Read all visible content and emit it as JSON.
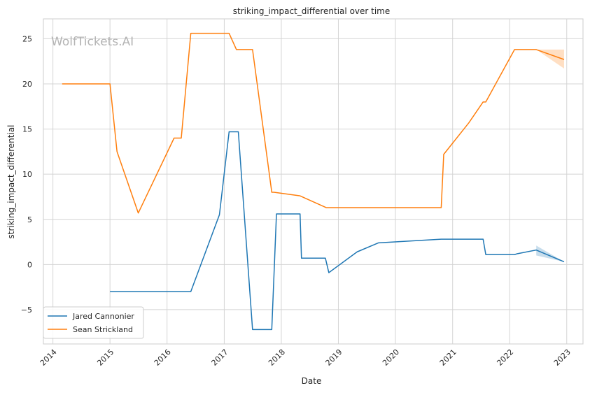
{
  "chart_data": {
    "type": "line",
    "title": "striking_impact_differential over time",
    "xlabel": "Date",
    "ylabel": "striking_impact_differential",
    "watermark": "WolfTickets.AI",
    "x_scale": "date",
    "xlim": [
      "2013-11-01",
      "2023-04-15"
    ],
    "ylim": [
      -8.8,
      27.2
    ],
    "x_ticks": [
      "2014",
      "2015",
      "2016",
      "2017",
      "2018",
      "2019",
      "2020",
      "2021",
      "2022",
      "2023"
    ],
    "y_ticks": [
      -5,
      0,
      5,
      10,
      15,
      20,
      25
    ],
    "grid": true,
    "legend_position": "lower-left",
    "series": [
      {
        "name": "Jared Cannonier",
        "color": "#1f77b4",
        "x": [
          "2015-01-01",
          "2016-06-01",
          "2016-12-01",
          "2017-02-01",
          "2017-04-01",
          "2017-07-01",
          "2017-11-01",
          "2017-12-01",
          "2018-05-01",
          "2018-05-10",
          "2018-10-10",
          "2018-11-01",
          "2019-05-01",
          "2019-09-15",
          "2020-10-20",
          "2021-07-15",
          "2021-08-01",
          "2022-02-01",
          "2022-02-20",
          "2022-06-20",
          "2022-12-15"
        ],
        "values": [
          -3.0,
          -3.0,
          5.5,
          14.7,
          14.7,
          -7.2,
          -7.2,
          5.6,
          5.6,
          0.7,
          0.7,
          -0.9,
          1.4,
          2.4,
          2.8,
          2.8,
          1.1,
          1.1,
          1.2,
          1.6,
          0.3
        ],
        "ci_x": [
          "2022-06-20",
          "2022-12-15"
        ],
        "ci_lower": [
          1.0,
          0.3
        ],
        "ci_upper": [
          2.1,
          0.3
        ]
      },
      {
        "name": "Sean Strickland",
        "color": "#ff7f0e",
        "x": [
          "2014-03-01",
          "2015-01-01",
          "2015-02-15",
          "2015-07-01",
          "2016-02-15",
          "2016-04-01",
          "2016-06-01",
          "2017-02-01",
          "2017-03-20",
          "2017-07-01",
          "2017-11-01",
          "2017-11-15",
          "2018-05-01",
          "2018-10-15",
          "2020-10-20",
          "2020-11-05",
          "2021-04-15",
          "2021-07-15",
          "2021-08-01",
          "2022-02-01",
          "2022-06-20",
          "2022-12-15"
        ],
        "values": [
          20.0,
          20.0,
          12.5,
          5.7,
          14.0,
          14.0,
          25.6,
          25.6,
          23.8,
          23.8,
          8.0,
          8.0,
          7.6,
          6.3,
          6.3,
          12.2,
          15.7,
          18.0,
          18.0,
          23.8,
          23.8,
          22.7
        ],
        "ci_x": [
          "2022-06-20",
          "2022-12-15"
        ],
        "ci_lower": [
          23.8,
          21.7
        ],
        "ci_upper": [
          23.8,
          23.8
        ]
      }
    ]
  }
}
